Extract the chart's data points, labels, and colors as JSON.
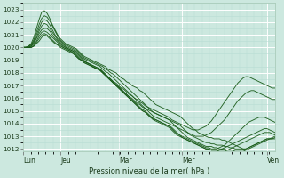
{
  "title": "Pression niveau de la mer( hPa )",
  "bg_color": "#cce8df",
  "grid_major_color": "#ffffff",
  "grid_minor_color": "#b8ddd4",
  "line_color": "#1a5c1a",
  "yticks": [
    1012,
    1013,
    1014,
    1015,
    1016,
    1017,
    1018,
    1019,
    1020,
    1021,
    1022,
    1023
  ],
  "ylim": [
    1011.8,
    1023.5
  ],
  "xtick_labels": [
    "Lun",
    "Jeu",
    "Mar",
    "Mer",
    "Ven"
  ],
  "xtick_positions": [
    0,
    0.148,
    0.38,
    0.63,
    0.97
  ],
  "figsize": [
    3.2,
    2.0
  ],
  "dpi": 100,
  "series": [
    [
      1020.0,
      1020.0,
      1020.1,
      1020.3,
      1020.8,
      1021.5,
      1022.2,
      1022.8,
      1022.9,
      1022.7,
      1022.3,
      1021.8,
      1021.4,
      1021.0,
      1020.7,
      1020.5,
      1020.3,
      1020.2,
      1020.1,
      1020.0,
      1019.9,
      1019.7,
      1019.5,
      1019.3,
      1019.2,
      1019.1,
      1019.0,
      1018.9,
      1018.8,
      1018.7,
      1018.6,
      1018.5,
      1018.3,
      1018.2,
      1018.1,
      1018.0,
      1017.8,
      1017.6,
      1017.5,
      1017.3,
      1017.2,
      1017.0,
      1016.9,
      1016.8,
      1016.6,
      1016.5,
      1016.3,
      1016.1,
      1015.9,
      1015.7,
      1015.5,
      1015.4,
      1015.3,
      1015.2,
      1015.1,
      1015.0,
      1014.9,
      1014.8,
      1014.7,
      1014.6,
      1014.4,
      1014.2,
      1014.0,
      1013.8,
      1013.6,
      1013.5,
      1013.3,
      1013.2,
      1013.1,
      1013.0,
      1012.9,
      1012.9,
      1012.8,
      1012.8,
      1012.8,
      1012.7,
      1012.7,
      1012.6,
      1012.5,
      1012.4,
      1012.3,
      1012.2,
      1012.1,
      1012.0,
      1012.0,
      1012.1,
      1012.2,
      1012.3,
      1012.4,
      1012.5,
      1012.6,
      1012.7,
      1012.8,
      1012.8,
      1012.8,
      1012.9
    ],
    [
      1020.0,
      1020.0,
      1020.1,
      1020.2,
      1020.6,
      1021.2,
      1021.8,
      1022.3,
      1022.5,
      1022.4,
      1022.1,
      1021.7,
      1021.3,
      1020.9,
      1020.6,
      1020.4,
      1020.2,
      1020.1,
      1020.0,
      1019.9,
      1019.8,
      1019.6,
      1019.4,
      1019.2,
      1019.1,
      1019.0,
      1018.9,
      1018.8,
      1018.7,
      1018.6,
      1018.5,
      1018.3,
      1018.2,
      1018.0,
      1017.9,
      1017.7,
      1017.5,
      1017.3,
      1017.1,
      1016.9,
      1016.7,
      1016.5,
      1016.3,
      1016.1,
      1015.9,
      1015.7,
      1015.5,
      1015.3,
      1015.1,
      1014.9,
      1014.8,
      1014.7,
      1014.6,
      1014.5,
      1014.4,
      1014.3,
      1014.2,
      1014.1,
      1014.0,
      1013.9,
      1013.7,
      1013.5,
      1013.3,
      1013.1,
      1013.0,
      1012.9,
      1012.8,
      1012.7,
      1012.6,
      1012.5,
      1012.5,
      1012.4,
      1012.4,
      1012.3,
      1012.3,
      1012.3,
      1012.2,
      1012.2,
      1012.1,
      1012.1,
      1012.0,
      1012.0,
      1012.0,
      1012.0,
      1012.0,
      1012.1,
      1012.2,
      1012.3,
      1012.4,
      1012.5,
      1012.6,
      1012.7,
      1012.8,
      1012.8,
      1012.8,
      1012.8
    ],
    [
      1020.0,
      1020.0,
      1020.0,
      1020.2,
      1020.5,
      1021.0,
      1021.5,
      1022.0,
      1022.2,
      1022.1,
      1021.8,
      1021.4,
      1021.0,
      1020.7,
      1020.5,
      1020.3,
      1020.1,
      1020.0,
      1019.9,
      1019.8,
      1019.7,
      1019.5,
      1019.3,
      1019.1,
      1019.0,
      1018.9,
      1018.8,
      1018.7,
      1018.6,
      1018.5,
      1018.3,
      1018.1,
      1018.0,
      1017.8,
      1017.6,
      1017.4,
      1017.2,
      1017.0,
      1016.8,
      1016.6,
      1016.4,
      1016.2,
      1016.0,
      1015.8,
      1015.6,
      1015.4,
      1015.2,
      1015.0,
      1014.8,
      1014.6,
      1014.5,
      1014.4,
      1014.3,
      1014.2,
      1014.1,
      1014.0,
      1013.9,
      1013.8,
      1013.7,
      1013.5,
      1013.3,
      1013.1,
      1012.9,
      1012.8,
      1012.7,
      1012.6,
      1012.5,
      1012.4,
      1012.3,
      1012.2,
      1012.2,
      1012.2,
      1012.1,
      1012.1,
      1012.0,
      1012.0,
      1012.0,
      1011.9,
      1011.9,
      1011.9,
      1011.8,
      1011.8,
      1011.8,
      1011.8,
      1011.9,
      1012.0,
      1012.1,
      1012.2,
      1012.3,
      1012.4,
      1012.5,
      1012.6,
      1012.7,
      1012.8,
      1012.9,
      1013.0
    ],
    [
      1020.0,
      1020.0,
      1020.0,
      1020.1,
      1020.4,
      1020.8,
      1021.3,
      1021.7,
      1021.9,
      1021.8,
      1021.5,
      1021.2,
      1020.9,
      1020.6,
      1020.4,
      1020.2,
      1020.0,
      1019.9,
      1019.8,
      1019.7,
      1019.6,
      1019.4,
      1019.2,
      1019.0,
      1018.8,
      1018.7,
      1018.6,
      1018.5,
      1018.4,
      1018.3,
      1018.1,
      1017.9,
      1017.7,
      1017.5,
      1017.3,
      1017.1,
      1016.9,
      1016.7,
      1016.5,
      1016.3,
      1016.1,
      1015.9,
      1015.7,
      1015.5,
      1015.3,
      1015.1,
      1015.0,
      1014.8,
      1014.6,
      1014.4,
      1014.3,
      1014.2,
      1014.1,
      1014.0,
      1013.9,
      1013.8,
      1013.7,
      1013.5,
      1013.3,
      1013.1,
      1012.9,
      1012.8,
      1012.7,
      1012.6,
      1012.5,
      1012.4,
      1012.3,
      1012.2,
      1012.1,
      1012.0,
      1012.0,
      1011.9,
      1011.9,
      1011.9,
      1011.8,
      1011.8,
      1011.8,
      1011.9,
      1012.0,
      1012.1,
      1012.2,
      1012.3,
      1012.4,
      1012.5,
      1012.6,
      1012.7,
      1012.8,
      1012.9,
      1013.0,
      1013.1,
      1013.2,
      1013.3,
      1013.3,
      1013.3,
      1013.2,
      1013.1
    ],
    [
      1020.0,
      1020.0,
      1020.0,
      1020.1,
      1020.3,
      1020.7,
      1021.1,
      1021.4,
      1021.5,
      1021.5,
      1021.3,
      1021.0,
      1020.7,
      1020.5,
      1020.3,
      1020.1,
      1020.0,
      1019.9,
      1019.8,
      1019.7,
      1019.5,
      1019.3,
      1019.1,
      1018.9,
      1018.8,
      1018.7,
      1018.5,
      1018.4,
      1018.3,
      1018.2,
      1018.0,
      1017.8,
      1017.6,
      1017.4,
      1017.2,
      1017.0,
      1016.8,
      1016.6,
      1016.4,
      1016.2,
      1016.0,
      1015.8,
      1015.6,
      1015.4,
      1015.2,
      1015.0,
      1014.9,
      1014.7,
      1014.5,
      1014.3,
      1014.2,
      1014.1,
      1014.0,
      1013.9,
      1013.8,
      1013.7,
      1013.5,
      1013.3,
      1013.1,
      1013.0,
      1012.9,
      1012.8,
      1012.7,
      1012.6,
      1012.5,
      1012.4,
      1012.3,
      1012.2,
      1012.1,
      1012.0,
      1012.0,
      1011.9,
      1011.9,
      1011.9,
      1011.9,
      1012.0,
      1012.1,
      1012.2,
      1012.3,
      1012.4,
      1012.5,
      1012.6,
      1012.7,
      1012.8,
      1012.9,
      1013.0,
      1013.1,
      1013.2,
      1013.3,
      1013.4,
      1013.5,
      1013.6,
      1013.6,
      1013.5,
      1013.4,
      1013.3
    ],
    [
      1020.0,
      1020.0,
      1020.0,
      1020.0,
      1020.2,
      1020.5,
      1020.9,
      1021.2,
      1021.3,
      1021.2,
      1021.0,
      1020.8,
      1020.6,
      1020.4,
      1020.2,
      1020.0,
      1019.9,
      1019.8,
      1019.7,
      1019.6,
      1019.4,
      1019.2,
      1019.0,
      1018.8,
      1018.7,
      1018.6,
      1018.5,
      1018.4,
      1018.3,
      1018.2,
      1018.0,
      1017.8,
      1017.6,
      1017.4,
      1017.2,
      1017.0,
      1016.8,
      1016.6,
      1016.4,
      1016.2,
      1016.0,
      1015.8,
      1015.6,
      1015.4,
      1015.2,
      1015.0,
      1014.9,
      1014.7,
      1014.5,
      1014.4,
      1014.3,
      1014.2,
      1014.1,
      1014.0,
      1013.9,
      1013.8,
      1013.6,
      1013.4,
      1013.2,
      1013.1,
      1013.0,
      1012.9,
      1012.8,
      1012.7,
      1012.6,
      1012.5,
      1012.4,
      1012.3,
      1012.2,
      1012.1,
      1012.1,
      1012.0,
      1012.0,
      1012.0,
      1012.1,
      1012.2,
      1012.3,
      1012.5,
      1012.7,
      1012.9,
      1013.1,
      1013.3,
      1013.5,
      1013.7,
      1013.9,
      1014.1,
      1014.2,
      1014.3,
      1014.4,
      1014.5,
      1014.5,
      1014.5,
      1014.4,
      1014.3,
      1014.2,
      1014.1
    ],
    [
      1020.0,
      1020.0,
      1020.0,
      1020.0,
      1020.1,
      1020.4,
      1020.7,
      1021.0,
      1021.1,
      1021.0,
      1020.8,
      1020.6,
      1020.4,
      1020.2,
      1020.1,
      1020.0,
      1019.9,
      1019.8,
      1019.7,
      1019.5,
      1019.3,
      1019.1,
      1019.0,
      1018.8,
      1018.7,
      1018.6,
      1018.5,
      1018.4,
      1018.3,
      1018.2,
      1018.0,
      1017.8,
      1017.6,
      1017.4,
      1017.2,
      1017.0,
      1016.9,
      1016.7,
      1016.5,
      1016.3,
      1016.1,
      1016.0,
      1015.8,
      1015.6,
      1015.5,
      1015.3,
      1015.2,
      1015.1,
      1015.0,
      1014.9,
      1014.8,
      1014.7,
      1014.6,
      1014.5,
      1014.4,
      1014.3,
      1014.1,
      1013.9,
      1013.7,
      1013.6,
      1013.5,
      1013.4,
      1013.3,
      1013.2,
      1013.1,
      1013.0,
      1013.0,
      1013.0,
      1013.0,
      1013.1,
      1013.2,
      1013.3,
      1013.5,
      1013.7,
      1013.9,
      1014.1,
      1014.3,
      1014.6,
      1014.9,
      1015.2,
      1015.5,
      1015.8,
      1016.0,
      1016.2,
      1016.4,
      1016.5,
      1016.6,
      1016.6,
      1016.5,
      1016.4,
      1016.3,
      1016.2,
      1016.1,
      1016.0,
      1015.9,
      1015.9
    ],
    [
      1020.0,
      1020.0,
      1020.0,
      1020.0,
      1020.1,
      1020.3,
      1020.5,
      1020.8,
      1021.0,
      1020.9,
      1020.7,
      1020.5,
      1020.3,
      1020.2,
      1020.0,
      1019.9,
      1019.8,
      1019.7,
      1019.6,
      1019.5,
      1019.3,
      1019.1,
      1019.0,
      1018.9,
      1018.8,
      1018.7,
      1018.6,
      1018.5,
      1018.4,
      1018.3,
      1018.1,
      1017.9,
      1017.7,
      1017.5,
      1017.3,
      1017.2,
      1017.0,
      1016.8,
      1016.7,
      1016.5,
      1016.3,
      1016.2,
      1016.0,
      1015.9,
      1015.7,
      1015.6,
      1015.4,
      1015.3,
      1015.2,
      1015.1,
      1015.0,
      1014.9,
      1014.8,
      1014.7,
      1014.6,
      1014.5,
      1014.3,
      1014.2,
      1014.1,
      1014.0,
      1013.9,
      1013.8,
      1013.7,
      1013.6,
      1013.5,
      1013.5,
      1013.5,
      1013.6,
      1013.7,
      1013.8,
      1014.0,
      1014.2,
      1014.5,
      1014.8,
      1015.1,
      1015.4,
      1015.7,
      1016.0,
      1016.3,
      1016.6,
      1016.9,
      1017.2,
      1017.4,
      1017.6,
      1017.7,
      1017.7,
      1017.6,
      1017.5,
      1017.4,
      1017.3,
      1017.2,
      1017.1,
      1017.0,
      1016.9,
      1016.8,
      1016.8
    ]
  ]
}
